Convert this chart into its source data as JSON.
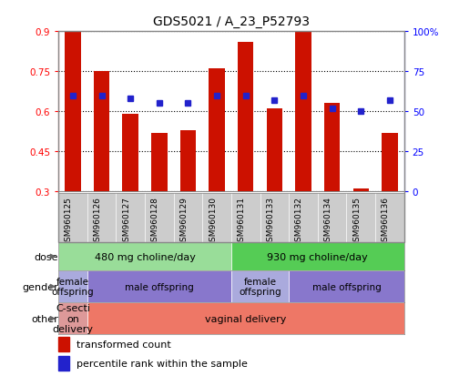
{
  "title": "GDS5021 / A_23_P52793",
  "samples": [
    "GSM960125",
    "GSM960126",
    "GSM960127",
    "GSM960128",
    "GSM960129",
    "GSM960130",
    "GSM960131",
    "GSM960133",
    "GSM960132",
    "GSM960134",
    "GSM960135",
    "GSM960136"
  ],
  "bar_values": [
    0.9,
    0.75,
    0.59,
    0.52,
    0.53,
    0.76,
    0.86,
    0.61,
    0.9,
    0.63,
    0.31,
    0.52
  ],
  "dot_values": [
    0.66,
    0.66,
    0.65,
    0.63,
    0.63,
    0.66,
    0.66,
    0.64,
    0.66,
    0.61,
    0.6,
    0.64
  ],
  "bar_color": "#cc1100",
  "dot_color": "#2222cc",
  "bar_bottom": 0.3,
  "ylim_left": [
    0.3,
    0.9
  ],
  "ylim_right": [
    0,
    100
  ],
  "yticks_left": [
    0.3,
    0.45,
    0.6,
    0.75,
    0.9
  ],
  "yticks_right": [
    0,
    25,
    50,
    75,
    100
  ],
  "dose_groups": [
    {
      "label": "480 mg choline/day",
      "start": 0,
      "end": 6,
      "color": "#99dd99"
    },
    {
      "label": "930 mg choline/day",
      "start": 6,
      "end": 12,
      "color": "#55cc55"
    }
  ],
  "gender_groups": [
    {
      "label": "female\noffspring",
      "start": 0,
      "end": 1,
      "color": "#aaaadd"
    },
    {
      "label": "male offspring",
      "start": 1,
      "end": 6,
      "color": "#8877cc"
    },
    {
      "label": "female\noffspring",
      "start": 6,
      "end": 8,
      "color": "#aaaadd"
    },
    {
      "label": "male offspring",
      "start": 8,
      "end": 12,
      "color": "#8877cc"
    }
  ],
  "other_groups": [
    {
      "label": "C-secti\non\ndelivery",
      "start": 0,
      "end": 1,
      "color": "#dd9999"
    },
    {
      "label": "vaginal delivery",
      "start": 1,
      "end": 12,
      "color": "#ee7766"
    }
  ],
  "row_labels": [
    "dose",
    "gender",
    "other"
  ],
  "xtick_bg_color": "#cccccc",
  "border_color": "#888888",
  "legend_items": [
    {
      "color": "#cc1100",
      "label": "transformed count"
    },
    {
      "color": "#2222cc",
      "label": "percentile rank within the sample"
    }
  ]
}
